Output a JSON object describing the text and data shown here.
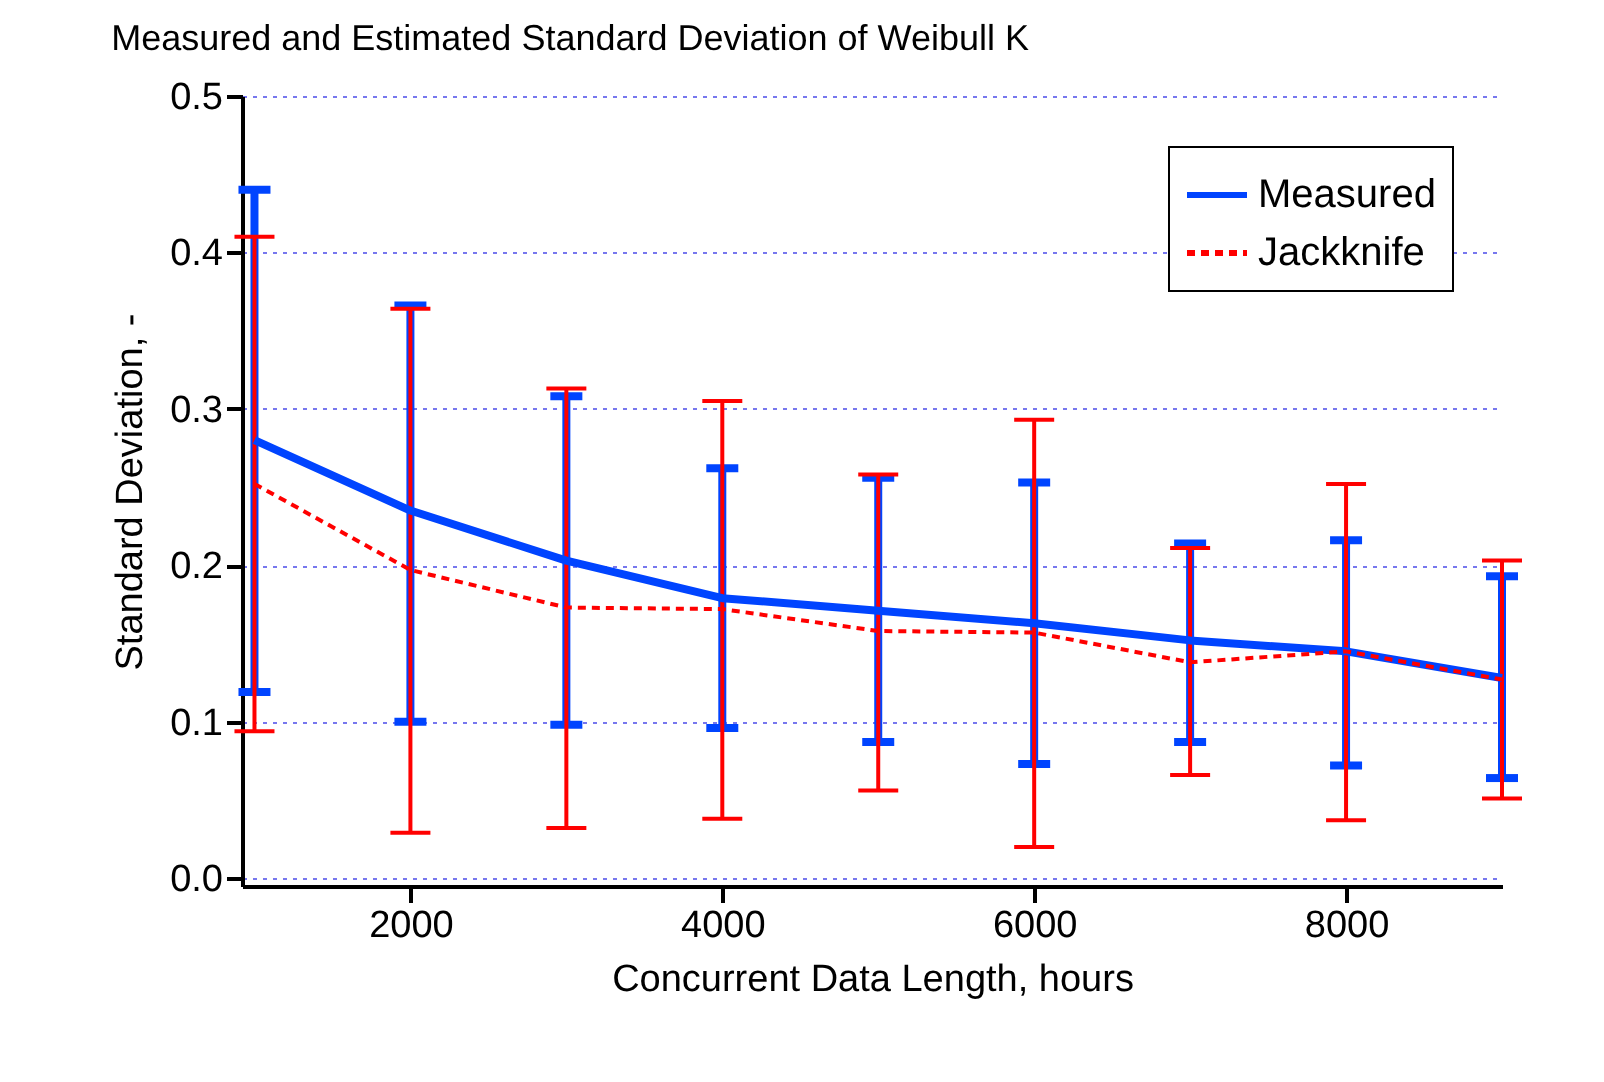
{
  "chart_data": {
    "type": "line",
    "title": "Measured and Estimated Standard Deviation of Weibull K",
    "xlabel": "Concurrent Data Length, hours",
    "ylabel": "Standard Deviation, -",
    "x": [
      1000,
      2000,
      3000,
      4000,
      5000,
      6000,
      7000,
      8000,
      9000
    ],
    "series": [
      {
        "name": "Measured",
        "color": "#0044ff",
        "line_style": "solid",
        "values": [
          0.28,
          0.235,
          0.203,
          0.179,
          0.171,
          0.163,
          0.152,
          0.145,
          0.128
        ],
        "errors": [
          [
            0.119,
            0.44
          ],
          [
            0.1,
            0.366
          ],
          [
            0.098,
            0.308
          ],
          [
            0.096,
            0.262
          ],
          [
            0.087,
            0.256
          ],
          [
            0.073,
            0.253
          ],
          [
            0.087,
            0.214
          ],
          [
            0.072,
            0.216
          ],
          [
            0.064,
            0.193
          ]
        ]
      },
      {
        "name": "Jackknife",
        "color": "#ff0000",
        "line_style": "dashed",
        "values": [
          0.252,
          0.197,
          0.173,
          0.172,
          0.158,
          0.157,
          0.138,
          0.145,
          0.127
        ],
        "errors": [
          [
            0.094,
            0.41
          ],
          [
            0.029,
            0.364
          ],
          [
            0.032,
            0.313
          ],
          [
            0.038,
            0.305
          ],
          [
            0.056,
            0.258
          ],
          [
            0.02,
            0.293
          ],
          [
            0.066,
            0.211
          ],
          [
            0.037,
            0.252
          ],
          [
            0.051,
            0.203
          ]
        ]
      }
    ],
    "xlim": [
      920,
      9000
    ],
    "xticks": [
      2000,
      4000,
      6000,
      8000
    ],
    "ylim": [
      -0.005,
      0.5
    ],
    "yticks": [
      {
        "value": 0,
        "label": "0.0"
      },
      {
        "value": 0.1,
        "label": "0.1"
      },
      {
        "value": 0.2,
        "label": "0.2"
      },
      {
        "value": 0.3,
        "label": "0.3"
      },
      {
        "value": 0.4,
        "label": "0.4"
      },
      {
        "value": 0.5,
        "label": "0.5"
      }
    ],
    "grid": "y",
    "legend": "top right",
    "marker": "none"
  }
}
